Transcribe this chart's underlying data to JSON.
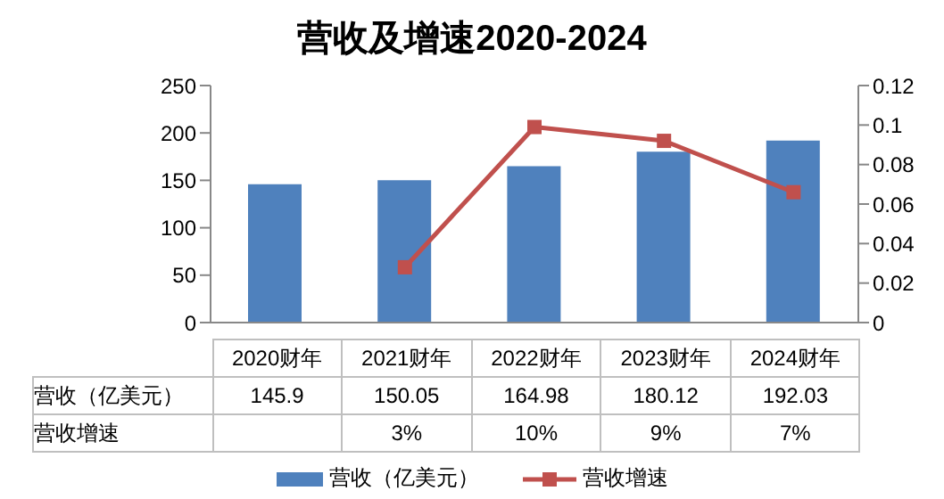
{
  "chart_data": {
    "type": "bar",
    "title": "营收及增速2020-2024",
    "categories": [
      "2020财年",
      "2021财年",
      "2022财年",
      "2023财年",
      "2024财年"
    ],
    "series": [
      {
        "name": "营收（亿美元）",
        "color": "#4f81bd",
        "values": [
          145.9,
          150.05,
          164.98,
          180.12,
          192.03
        ]
      },
      {
        "name": "营收增速",
        "type": "line",
        "axis": "y2",
        "color": "#c0504d",
        "marker": "square",
        "values": [
          null,
          0.028,
          0.099,
          0.092,
          0.066
        ],
        "value_labels": [
          null,
          "3%",
          "10%",
          "9%",
          "7%"
        ]
      }
    ],
    "ylim": [
      0,
      250
    ],
    "yticks": [
      0,
      50,
      100,
      150,
      200,
      250
    ],
    "y2lim": [
      0,
      0.12
    ],
    "y2ticks": [
      0,
      0.02,
      0.04,
      0.06,
      0.08,
      0.1,
      0.12
    ],
    "data_labels": true,
    "legend": "bottom"
  }
}
